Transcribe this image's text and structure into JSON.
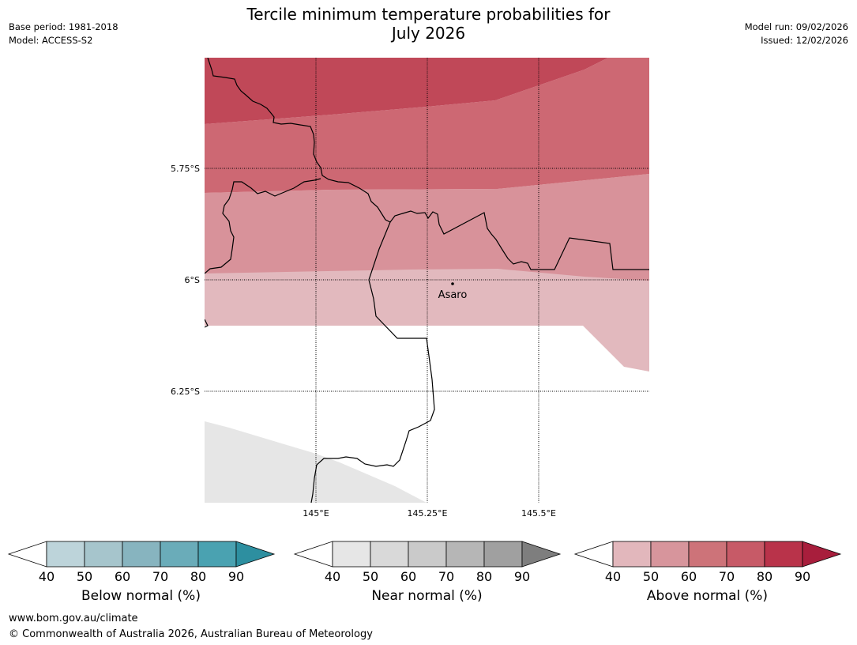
{
  "header": {
    "title_line1": "Tercile minimum temperature probabilities for",
    "title_line2": "July 2026",
    "base_period": "Base period: 1981-2018",
    "model": "Model: ACCESS-S2",
    "model_run": "Model run: 09/02/2026",
    "issued": "Issued: 12/02/2026"
  },
  "map": {
    "lat_labels": [
      "5.75°S",
      "6°S",
      "6.25°S"
    ],
    "lon_labels": [
      "145°E",
      "145.25°E",
      "145.5°E"
    ],
    "place_label": "Asaro",
    "bands": {
      "above_80_90": "#c04858",
      "above_70_80": "#cd6873",
      "above_50_60": "#d8929a",
      "above_40_50": "#e2b9be",
      "near_40_50": "#e6e6e6"
    }
  },
  "legends": [
    {
      "label": "Below normal (%)",
      "ticks": [
        "40",
        "50",
        "60",
        "70",
        "80",
        "90"
      ],
      "colors": [
        "#bdd4da",
        "#a6c5cc",
        "#87b4bf",
        "#6aacb9",
        "#4aa2b1",
        "#2d8fa0"
      ]
    },
    {
      "label": "Near normal (%)",
      "ticks": [
        "40",
        "50",
        "60",
        "70",
        "80",
        "90"
      ],
      "colors": [
        "#e6e6e6",
        "#d9d9d9",
        "#cacaca",
        "#b6b6b6",
        "#a0a0a0",
        "#7e7e7e"
      ]
    },
    {
      "label": "Above normal (%)",
      "ticks": [
        "40",
        "50",
        "60",
        "70",
        "80",
        "90"
      ],
      "colors": [
        "#e2b7bc",
        "#d7959c",
        "#cd7379",
        "#c75a67",
        "#b9334a",
        "#a81e3c"
      ]
    }
  ],
  "footer": {
    "url": "www.bom.gov.au/climate",
    "copyright": "© Commonwealth of Australia 2026, Australian Bureau of Meteorology"
  }
}
